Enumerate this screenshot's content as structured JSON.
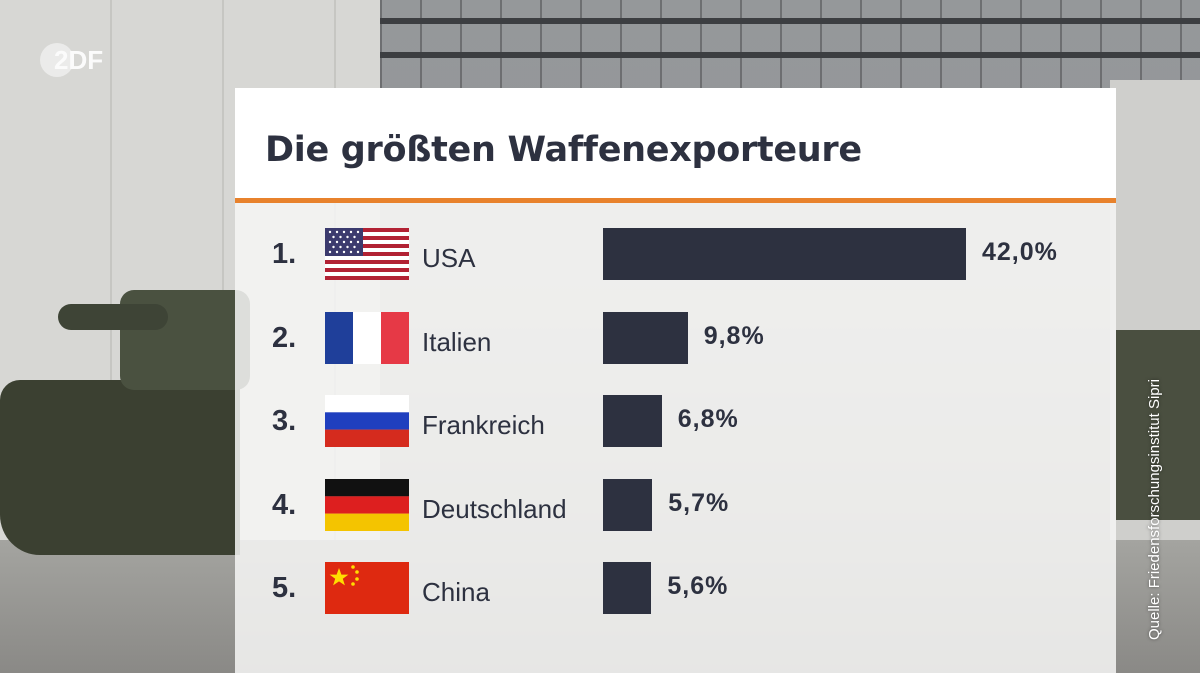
{
  "logo": {
    "text": "2DF"
  },
  "source": "Quelle: Friedensforschungsinstitut Sipri",
  "chart_data": {
    "type": "bar",
    "orientation": "horizontal",
    "title": "Die größten Waffenexporteure",
    "xlim": [
      0,
      42
    ],
    "colors": {
      "bar": "#2d3140",
      "accent": "#e8822c",
      "text": "#2d3140"
    },
    "items": [
      {
        "rank": "1.",
        "country": "USA",
        "flag": "usa-flag",
        "value": 42.0,
        "label": "42,0%"
      },
      {
        "rank": "2.",
        "country": "Italien",
        "flag": "france-flag",
        "value": 9.8,
        "label": "9,8%"
      },
      {
        "rank": "3.",
        "country": "Frankreich",
        "flag": "russia-flag",
        "value": 6.8,
        "label": "6,8%"
      },
      {
        "rank": "4.",
        "country": "Deutschland",
        "flag": "germany-flag",
        "value": 5.7,
        "label": "5,7%"
      },
      {
        "rank": "5.",
        "country": "China",
        "flag": "china-flag",
        "value": 5.6,
        "label": "5,6%"
      }
    ]
  }
}
